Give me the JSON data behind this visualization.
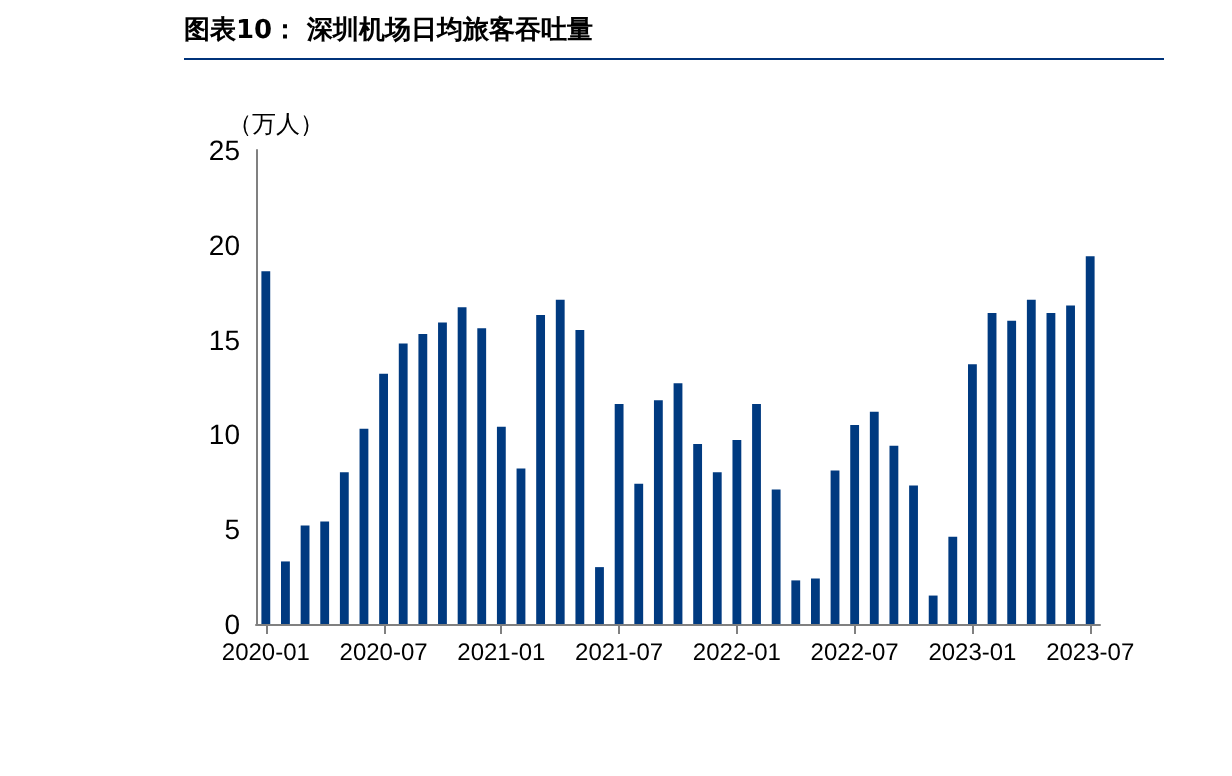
{
  "chart_data": {
    "type": "bar",
    "title": "图表10：  深圳机场日均旅客吞吐量",
    "ylabel": "（万人）",
    "categories": [
      "2020-01",
      null,
      null,
      null,
      null,
      null,
      "2020-07",
      null,
      null,
      null,
      null,
      null,
      "2021-01",
      null,
      null,
      null,
      null,
      null,
      "2021-07",
      null,
      null,
      null,
      null,
      null,
      "2022-01",
      null,
      null,
      null,
      null,
      null,
      "2022-07",
      null,
      null,
      null,
      null,
      null,
      "2023-01",
      null,
      null,
      null,
      null,
      null,
      "2023-07"
    ],
    "values": [
      18.6,
      3.3,
      5.2,
      5.4,
      8.0,
      10.3,
      13.2,
      14.8,
      15.3,
      15.9,
      16.7,
      15.6,
      10.4,
      8.2,
      16.3,
      17.1,
      15.5,
      3.0,
      11.6,
      7.4,
      11.8,
      12.7,
      9.5,
      8.0,
      9.7,
      11.6,
      7.1,
      2.3,
      2.4,
      8.1,
      10.5,
      11.2,
      9.4,
      7.3,
      1.5,
      4.6,
      13.7,
      16.4,
      16.0,
      17.1,
      16.4,
      16.8,
      19.4
    ],
    "color": "#003a80",
    "ylim": [
      0,
      25
    ],
    "yticks": [
      0,
      5,
      10,
      15,
      20,
      25
    ],
    "grid": false
  }
}
